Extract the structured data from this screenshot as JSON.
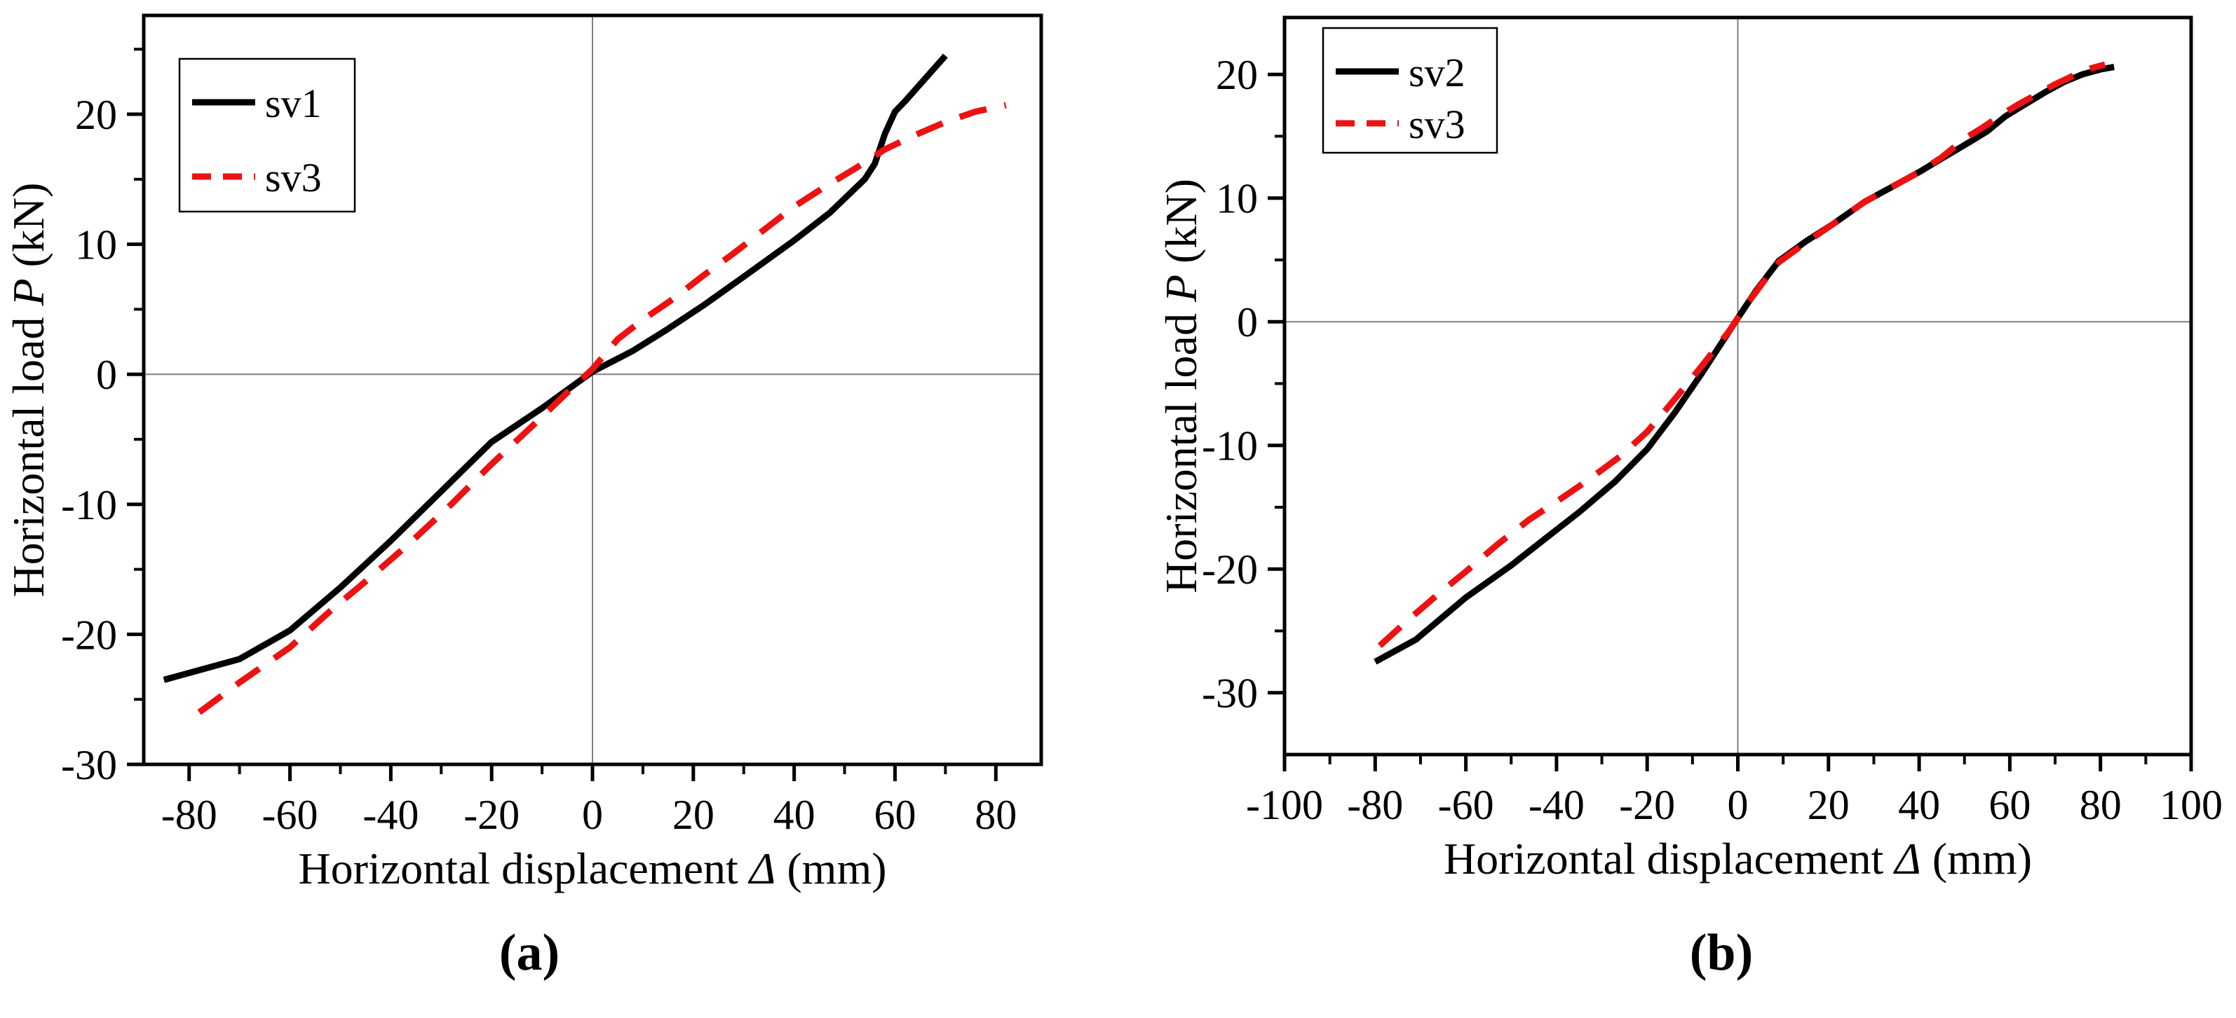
{
  "figure": {
    "background": "#ffffff",
    "description": "Two-panel backbone curve comparison of horizontal load versus horizontal displacement"
  },
  "colors": {
    "series_black": "#000000",
    "series_red": "#ee1111",
    "crosshair_gray": "#7f7f7f",
    "frame": "#000000",
    "legend_border": "#000000"
  },
  "chart_data": [
    {
      "id": "a",
      "type": "line",
      "caption": "(a)",
      "xlabel_prefix": "Horizontal displacement ",
      "xlabel_symbol": "Δ",
      "xlabel_suffix": " (mm)",
      "ylabel_prefix": "Horizontal load ",
      "ylabel_symbol": "P",
      "ylabel_suffix": " (kN)",
      "xlim": [
        -89,
        89
      ],
      "ylim": [
        -30,
        27.6
      ],
      "x_major_ticks": [
        -80,
        -60,
        -40,
        -20,
        0,
        20,
        40,
        60,
        80
      ],
      "x_minor_ticks": [
        -70,
        -50,
        -30,
        -10,
        10,
        30,
        50,
        70
      ],
      "y_major_ticks": [
        -30,
        -20,
        -10,
        0,
        10,
        20
      ],
      "y_minor_ticks": [
        -25,
        -15,
        -5,
        5,
        15,
        25
      ],
      "grid": "crosshair-at-zero-only",
      "legend_position": "top-left",
      "series": [
        {
          "name": "sv1",
          "color": "#000000",
          "style": "solid",
          "points": [
            [
              -85,
              -23.5
            ],
            [
              -70,
              -21.9
            ],
            [
              -60,
              -19.7
            ],
            [
              -50,
              -16.4
            ],
            [
              -40,
              -12.8
            ],
            [
              -30,
              -9.0
            ],
            [
              -20,
              -5.2
            ],
            [
              -10,
              -2.6
            ],
            [
              0,
              0.2
            ],
            [
              8,
              1.8
            ],
            [
              15,
              3.5
            ],
            [
              22,
              5.3
            ],
            [
              30,
              7.5
            ],
            [
              40,
              10.3
            ],
            [
              47,
              12.4
            ],
            [
              54,
              15.0
            ],
            [
              56,
              16.2
            ],
            [
              58,
              18.5
            ],
            [
              60,
              20.2
            ],
            [
              62,
              21.0
            ],
            [
              70,
              24.5
            ]
          ]
        },
        {
          "name": "sv3",
          "color": "#ee1111",
          "style": "dashed",
          "points": [
            [
              -78,
              -26.0
            ],
            [
              -70,
              -23.7
            ],
            [
              -60,
              -21.0
            ],
            [
              -52,
              -18.2
            ],
            [
              -44,
              -15.6
            ],
            [
              -36,
              -12.9
            ],
            [
              -28,
              -10.0
            ],
            [
              -20,
              -6.9
            ],
            [
              -12,
              -4.0
            ],
            [
              -5,
              -1.4
            ],
            [
              0,
              0.4
            ],
            [
              5,
              2.7
            ],
            [
              10,
              4.2
            ],
            [
              16,
              5.8
            ],
            [
              22,
              7.6
            ],
            [
              28,
              9.3
            ],
            [
              34,
              11.1
            ],
            [
              40,
              12.9
            ],
            [
              46,
              14.4
            ],
            [
              52,
              15.8
            ],
            [
              58,
              17.3
            ],
            [
              64,
              18.4
            ],
            [
              70,
              19.4
            ],
            [
              76,
              20.2
            ],
            [
              82,
              20.7
            ]
          ]
        }
      ]
    },
    {
      "id": "b",
      "type": "line",
      "caption": "(b)",
      "xlabel_prefix": "Horizontal displacement ",
      "xlabel_symbol": "Δ",
      "xlabel_suffix": " (mm)",
      "ylabel_prefix": "Horizontal load ",
      "ylabel_symbol": "P",
      "ylabel_suffix": " (kN)",
      "xlim": [
        -100,
        100
      ],
      "ylim": [
        -35,
        24.6
      ],
      "x_major_ticks": [
        -100,
        -80,
        -60,
        -40,
        -20,
        0,
        20,
        40,
        60,
        80,
        100
      ],
      "x_minor_ticks": [
        -90,
        -70,
        -50,
        -30,
        -10,
        10,
        30,
        50,
        70,
        90
      ],
      "y_major_ticks": [
        -30,
        -20,
        -10,
        0,
        10,
        20
      ],
      "y_minor_ticks": [
        -25,
        -15,
        -5,
        5,
        15
      ],
      "grid": "crosshair-at-zero-only",
      "legend_position": "top-left",
      "series": [
        {
          "name": "sv2",
          "color": "#000000",
          "style": "solid",
          "points": [
            [
              -80,
              -27.5
            ],
            [
              -71,
              -25.7
            ],
            [
              -60,
              -22.3
            ],
            [
              -50,
              -19.7
            ],
            [
              -42,
              -17.4
            ],
            [
              -35,
              -15.4
            ],
            [
              -27,
              -12.9
            ],
            [
              -20,
              -10.3
            ],
            [
              -14,
              -7.4
            ],
            [
              -8,
              -4.2
            ],
            [
              0,
              0.3
            ],
            [
              4,
              2.5
            ],
            [
              9,
              4.9
            ],
            [
              15,
              6.5
            ],
            [
              21,
              7.9
            ],
            [
              28,
              9.7
            ],
            [
              34,
              10.9
            ],
            [
              40,
              12.1
            ],
            [
              45,
              13.2
            ],
            [
              51,
              14.5
            ],
            [
              55,
              15.4
            ],
            [
              59,
              16.6
            ],
            [
              63,
              17.5
            ],
            [
              68,
              18.6
            ],
            [
              72,
              19.4
            ],
            [
              76,
              20.0
            ],
            [
              80,
              20.4
            ],
            [
              83,
              20.6
            ]
          ]
        },
        {
          "name": "sv3",
          "color": "#ee1111",
          "style": "dashed",
          "points": [
            [
              -79,
              -26.2
            ],
            [
              -73,
              -24.2
            ],
            [
              -66,
              -22.0
            ],
            [
              -60,
              -20.2
            ],
            [
              -53,
              -18.0
            ],
            [
              -46,
              -16.0
            ],
            [
              -39,
              -14.3
            ],
            [
              -33,
              -12.8
            ],
            [
              -26,
              -10.9
            ],
            [
              -20,
              -8.9
            ],
            [
              -14,
              -6.3
            ],
            [
              -8,
              -3.6
            ],
            [
              -2,
              -0.8
            ],
            [
              2,
              1.4
            ],
            [
              6,
              3.4
            ],
            [
              9,
              4.8
            ],
            [
              15,
              6.4
            ],
            [
              21,
              7.9
            ],
            [
              28,
              9.7
            ],
            [
              34,
              10.9
            ],
            [
              40,
              12.1
            ],
            [
              45,
              13.3
            ],
            [
              50,
              14.8
            ],
            [
              54,
              15.7
            ],
            [
              58,
              16.7
            ],
            [
              62,
              17.6
            ],
            [
              66,
              18.4
            ],
            [
              70,
              19.2
            ],
            [
              74,
              19.9
            ],
            [
              78,
              20.5
            ],
            [
              81,
              20.8
            ]
          ]
        }
      ]
    }
  ]
}
